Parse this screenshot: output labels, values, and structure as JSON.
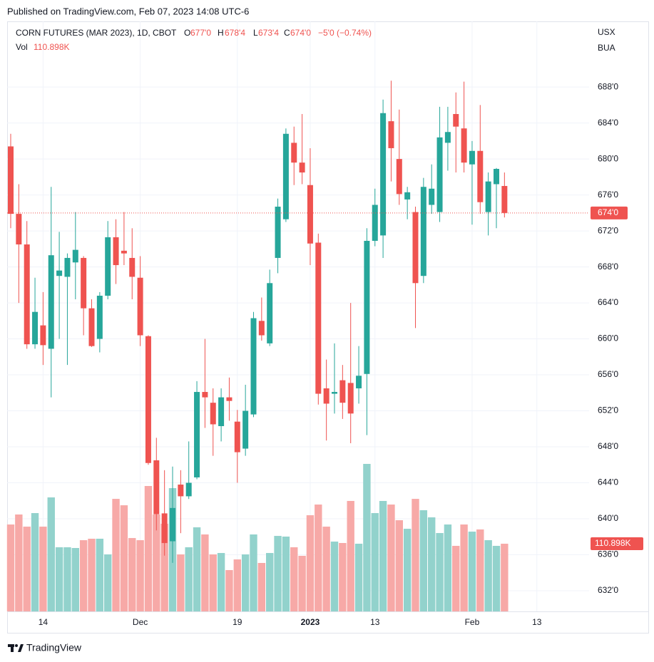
{
  "published": "Published on TradingView.com, Feb 07, 2023 14:08 UTC-6",
  "footer": "TradingView",
  "chart_data": {
    "type": "candlestick",
    "legend": {
      "symbol": "CORN FUTURES (MAR 2023), 1D, CBOT",
      "open_label": "O",
      "open": "677'0",
      "high_label": "H",
      "high": "678'4",
      "low_label": "L",
      "low": "673'4",
      "close_label": "C",
      "close": "674'0",
      "change": "−5'0 (−0.74%)",
      "volume_label": "Vol",
      "volume": "110.898K"
    },
    "currency": "USX",
    "unit": "BUA",
    "up_color": "#26a69a",
    "down_color": "#ef5350",
    "up_volume_color": "#92d2cc",
    "down_volume_color": "#f7a9a7",
    "x": [
      "2022-11-08",
      "2022-11-09",
      "2022-11-10",
      "2022-11-11",
      "2022-11-14",
      "2022-11-15",
      "2022-11-16",
      "2022-11-17",
      "2022-11-18",
      "2022-11-21",
      "2022-11-22",
      "2022-11-23",
      "2022-11-25",
      "2022-11-28",
      "2022-11-29",
      "2022-11-30",
      "2022-12-01",
      "2022-12-02",
      "2022-12-05",
      "2022-12-06",
      "2022-12-07",
      "2022-12-08",
      "2022-12-09",
      "2022-12-12",
      "2022-12-13",
      "2022-12-14",
      "2022-12-15",
      "2022-12-16",
      "2022-12-19",
      "2022-12-20",
      "2022-12-21",
      "2022-12-22",
      "2022-12-23",
      "2022-12-27",
      "2022-12-28",
      "2022-12-29",
      "2022-12-30",
      "2023-01-03",
      "2023-01-04",
      "2023-01-05",
      "2023-01-06",
      "2023-01-09",
      "2023-01-10",
      "2023-01-11",
      "2023-01-12",
      "2023-01-13",
      "2023-01-17",
      "2023-01-18",
      "2023-01-19",
      "2023-01-20",
      "2023-01-23",
      "2023-01-24",
      "2023-01-25",
      "2023-01-26",
      "2023-01-27",
      "2023-01-30",
      "2023-01-31",
      "2023-02-01",
      "2023-02-02",
      "2023-02-03",
      "2023-02-06",
      "2023-02-07"
    ],
    "open": [
      681.4,
      673.9,
      670.5,
      659.4,
      661.5,
      658.9,
      667.0,
      666.9,
      668.5,
      669.0,
      663.4,
      660.0,
      664.8,
      671.3,
      669.8,
      669.0,
      666.8,
      660.3,
      646.5,
      640.6,
      637.5,
      643.8,
      642.5,
      644.6,
      654.1,
      652.9,
      650.3,
      653.5,
      650.8,
      647.8,
      651.6,
      662.0,
      659.5,
      669.0,
      673.3,
      681.8,
      679.6,
      677.1,
      670.7,
      654.5,
      653.9,
      655.4,
      655.1,
      654.5,
      656.1,
      670.9,
      671.5,
      684.2,
      680.0,
      675.5,
      674.1,
      667.0,
      674.9,
      674.1,
      681.8,
      685.0,
      683.4,
      679.4,
      680.9,
      674.1,
      677.2,
      677.0
    ],
    "high": [
      682.8,
      677.2,
      673.1,
      666.8,
      665.2,
      676.9,
      671.9,
      669.5,
      674.1,
      669.2,
      664.4,
      665.2,
      673.1,
      673.3,
      674.1,
      672.3,
      669.2,
      660.4,
      649.0,
      645.4,
      645.8,
      645.4,
      648.6,
      655.3,
      660.0,
      654.5,
      654.5,
      655.7,
      652.1,
      654.9,
      663.0,
      664.6,
      667.7,
      675.6,
      683.4,
      683.6,
      685.0,
      681.2,
      671.7,
      657.7,
      659.5,
      657.1,
      664.0,
      659.2,
      672.3,
      676.7,
      686.6,
      688.7,
      685.5,
      676.9,
      674.7,
      677.9,
      679.4,
      685.8,
      685.8,
      687.4,
      688.6,
      682.0,
      686.0,
      678.5,
      679.0,
      678.5
    ],
    "low": [
      672.3,
      664.0,
      658.9,
      658.9,
      657.1,
      653.5,
      660.0,
      657.1,
      664.4,
      660.4,
      659.1,
      658.5,
      664.4,
      666.1,
      668.2,
      664.4,
      659.2,
      646.0,
      638.7,
      635.9,
      635.1,
      638.4,
      642.2,
      644.4,
      650.1,
      647.0,
      648.6,
      650.9,
      644.0,
      647.0,
      651.3,
      659.8,
      659.2,
      667.3,
      673.0,
      677.1,
      677.2,
      668.2,
      652.7,
      648.7,
      651.7,
      651.1,
      648.4,
      652.8,
      649.3,
      670.3,
      669.0,
      677.5,
      674.9,
      673.3,
      661.2,
      666.2,
      673.9,
      673.0,
      678.7,
      678.5,
      678.5,
      672.7,
      673.9,
      671.5,
      672.3,
      673.5
    ],
    "close": [
      673.9,
      670.5,
      659.4,
      663.0,
      659.3,
      669.3,
      667.6,
      669.0,
      669.9,
      663.4,
      659.2,
      664.8,
      671.3,
      668.2,
      669.5,
      666.9,
      660.4,
      646.2,
      640.5,
      637.3,
      641.2,
      642.5,
      644.0,
      654.1,
      653.5,
      650.5,
      653.5,
      653.1,
      647.4,
      652.0,
      662.3,
      660.4,
      666.2,
      674.7,
      682.8,
      679.6,
      678.5,
      670.6,
      653.9,
      652.8,
      654.1,
      652.9,
      651.7,
      655.9,
      670.9,
      674.9,
      685.1,
      681.2,
      676.1,
      676.3,
      666.2,
      676.9,
      676.7,
      682.4,
      683.0,
      683.6,
      679.6,
      680.9,
      675.2,
      677.5,
      678.9,
      674.0
    ],
    "volume": [
      142.4,
      158.8,
      138.9,
      161.1,
      138.9,
      186.8,
      105.1,
      105.1,
      103.9,
      116.7,
      119.1,
      119.1,
      93.4,
      184.4,
      173.9,
      120.2,
      116.7,
      205.5,
      158.8,
      143.6,
      202.0,
      93.4,
      105.1,
      137.8,
      126.1,
      93.4,
      95.7,
      67.7,
      85.2,
      93.4,
      126.1,
      79.4,
      95.7,
      123.7,
      122.6,
      105.1,
      91.1,
      157.6,
      175.1,
      138.9,
      114.4,
      112.1,
      181.0,
      110.9,
      241.7,
      161.1,
      181.0,
      175.1,
      149.4,
      135.4,
      184.4,
      165.8,
      154.1,
      128.4,
      142.4,
      107.4,
      142.4,
      130.7,
      134.3,
      116.7,
      107.4,
      110.9
    ],
    "ylim": [
      629.7,
      695.3
    ],
    "yticks": [
      {
        "value": 632,
        "label": "632'0"
      },
      {
        "value": 636,
        "label": "636'0"
      },
      {
        "value": 640,
        "label": "640'0"
      },
      {
        "value": 644,
        "label": "644'0"
      },
      {
        "value": 648,
        "label": "648'0"
      },
      {
        "value": 652,
        "label": "652'0"
      },
      {
        "value": 656,
        "label": "656'0"
      },
      {
        "value": 660,
        "label": "660'0"
      },
      {
        "value": 664,
        "label": "664'0"
      },
      {
        "value": 668,
        "label": "668'0"
      },
      {
        "value": 672,
        "label": "672'0"
      },
      {
        "value": 676,
        "label": "676'0"
      },
      {
        "value": 680,
        "label": "680'0"
      },
      {
        "value": 684,
        "label": "684'0"
      },
      {
        "value": 688,
        "label": "688'0"
      }
    ],
    "xticks": [
      {
        "value": "2022-11-14",
        "label": "14"
      },
      {
        "value": "2022-12-01",
        "label": "Dec"
      },
      {
        "value": "2022-12-19",
        "label": "19"
      },
      {
        "value": "2023-01-03",
        "label": "2023"
      },
      {
        "value": "2023-01-13",
        "label": "13"
      },
      {
        "value": "2023-02-01",
        "label": "Feb"
      },
      {
        "value": "2023-02-13",
        "label": "13"
      }
    ],
    "last_price": {
      "value": 674,
      "label": "674'0"
    },
    "last_volume": {
      "value": 110.898,
      "label": "110.898K"
    },
    "grid": true
  }
}
